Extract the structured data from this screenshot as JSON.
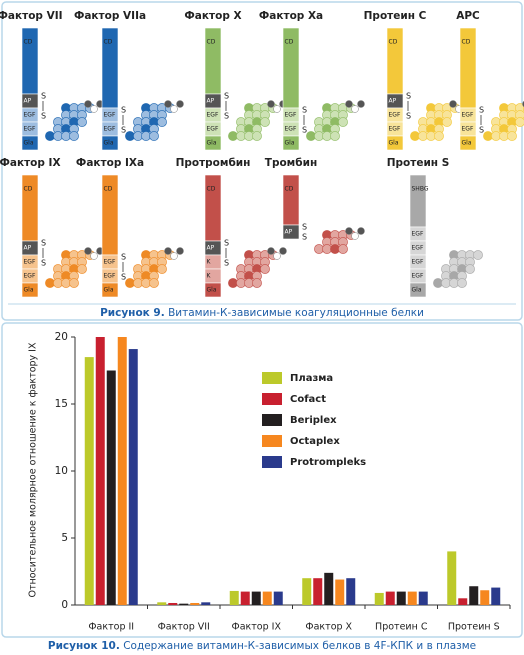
{
  "figure9": {
    "proteins": [
      {
        "name": "Фактор VII",
        "domains": [
          "CD",
          "AP",
          "EGF",
          "EGF",
          "Gla"
        ],
        "bonds": [
          "S",
          "S"
        ]
      },
      {
        "name": "Фактор VIIa",
        "domains": [
          "CD",
          "EGF",
          "EGF",
          "Gla"
        ],
        "bonds": [
          "S",
          "S"
        ]
      },
      {
        "name": "Фактор X",
        "domains": [
          "CD",
          "AP",
          "EGF",
          "EGF",
          "Gla"
        ],
        "bonds": [
          "S",
          "S"
        ]
      },
      {
        "name": "Фактор Xa",
        "domains": [
          "CD",
          "EGF",
          "EGF",
          "Gla"
        ],
        "bonds": [
          "S",
          "S"
        ]
      },
      {
        "name": "Протеин C",
        "domains": [
          "CD",
          "AP",
          "EGF",
          "EGF",
          "Gla"
        ],
        "bonds": [
          "S",
          "S"
        ]
      },
      {
        "name": "APC",
        "domains": [
          "CD",
          "EGF",
          "EGF",
          "Gla"
        ],
        "bonds": [
          "S",
          "S"
        ]
      },
      {
        "name": "Фактор IX",
        "domains": [
          "CD",
          "AP",
          "EGF",
          "EGF",
          "Gla"
        ],
        "bonds": [
          "S",
          "S"
        ]
      },
      {
        "name": "Фактор IXa",
        "domains": [
          "CD",
          "EGF",
          "EGF",
          "Gla"
        ],
        "bonds": [
          "S",
          "S"
        ]
      },
      {
        "name": "Протромбин",
        "domains": [
          "CD",
          "AP",
          "K",
          "K",
          "Gla"
        ],
        "bonds": [
          "S",
          "S"
        ]
      },
      {
        "name": "Тромбин",
        "domains": [
          "CD",
          "AP"
        ],
        "bonds": [
          "S",
          "S"
        ]
      },
      {
        "name": "Протеин S",
        "domains": [
          "SHBG",
          "EGF",
          "EGF",
          "EGF",
          "EGF",
          "Gla"
        ],
        "bonds": []
      }
    ],
    "caption": {
      "label": "Рисунок 9.",
      "text": "Витамин-К-зависимые коагуляционные белки"
    }
  },
  "chart_data": {
    "type": "bar",
    "ylabel": "Относительное молярное отношение к фактору IX",
    "categories": [
      "Фактор II",
      "Фактор VII",
      "Фактор IX",
      "Фактор X",
      "Протеин C",
      "Протеин S"
    ],
    "series": [
      {
        "name": "Плазма",
        "color": "#bcc92a",
        "values": [
          18.5,
          0.2,
          1.05,
          2.0,
          0.9,
          4.0
        ]
      },
      {
        "name": "Cofact",
        "color": "#c8202f",
        "values": [
          20,
          0.15,
          1.0,
          2.0,
          1.0,
          0.5
        ]
      },
      {
        "name": "Beriplex",
        "color": "#231f20",
        "values": [
          17.5,
          0.1,
          1.0,
          2.4,
          1.0,
          1.4
        ]
      },
      {
        "name": "Octaplex",
        "color": "#f6871f",
        "values": [
          20,
          0.15,
          1.0,
          1.9,
          1.0,
          1.1
        ]
      },
      {
        "name": "Protrompleks",
        "color": "#2a3a8c",
        "values": [
          19.1,
          0.2,
          1.0,
          2.0,
          1.0,
          1.3
        ]
      }
    ],
    "ylim": [
      0,
      20
    ],
    "yticks": [
      0,
      5,
      10,
      15,
      20
    ],
    "legend": "upper center"
  },
  "figure10": {
    "caption": {
      "label": "Рисунок 10.",
      "text": "Содержание витамин-К-зависимых белков в 4F-КПК и в плазме"
    }
  }
}
